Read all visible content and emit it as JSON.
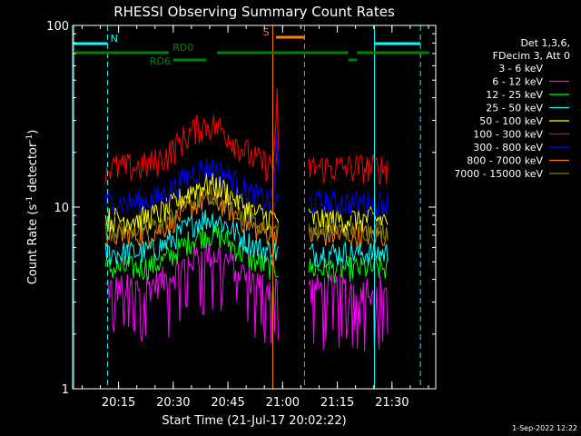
{
  "chart_data": {
    "type": "line",
    "title": "RHESSI Observing Summary Count Rates",
    "xlabel": "Start Time (21-Jul-17 20:02:22)",
    "ylabel_main": "Count Rate (s",
    "ylabel_sup1": "-1",
    "ylabel_mid": " detector",
    "ylabel_sup2": "-1",
    "ylabel_end": ")",
    "yscale": "log",
    "xlim": [
      20.04,
      21.7
    ],
    "ylim": [
      1,
      100
    ],
    "x_ticks": [
      {
        "label": "20:15",
        "value": 20.25
      },
      {
        "label": "20:30",
        "value": 20.5
      },
      {
        "label": "20:45",
        "value": 20.75
      },
      {
        "label": "21:00",
        "value": 21.0
      },
      {
        "label": "21:15",
        "value": 21.25
      },
      {
        "label": "21:30",
        "value": 21.5
      }
    ],
    "y_ticks": [
      {
        "label": "1",
        "value": 1
      },
      {
        "label": "10",
        "value": 10
      },
      {
        "label": "100",
        "value": 100
      }
    ],
    "legend_header": [
      "Det 1,3,6,",
      "FDecim 3, Att 0"
    ],
    "series": [
      {
        "name": "3 - 6 keV",
        "color": "#000000",
        "base": 9.3,
        "amp": 0.35
      },
      {
        "name": "6 - 12 keV",
        "color": "#ff00ff",
        "base": 3.6,
        "amp": 0.65
      },
      {
        "name": "12 - 25 keV",
        "color": "#00ff00",
        "base": 4.6,
        "amp": 0.55
      },
      {
        "name": "25 - 50 keV",
        "color": "#00ffff",
        "base": 5.6,
        "amp": 0.55
      },
      {
        "name": "50 - 100 keV",
        "color": "#ffff00",
        "base": 8.6,
        "amp": 0.55
      },
      {
        "name": "100 - 300 keV",
        "color": "#ff0000",
        "base": 16.5,
        "amp": 0.65
      },
      {
        "name": "300 - 800 keV",
        "color": "#0000ff",
        "base": 10.6,
        "amp": 0.55
      },
      {
        "name": "800 - 7000 keV",
        "color": "#ff7f00",
        "base": 7.0,
        "amp": 0.5
      },
      {
        "name": "7000 - 15000 keV",
        "color": "#808000",
        "base": 7.5,
        "amp": 0.45
      }
    ],
    "data_segments": [
      [
        20.19,
        20.98
      ],
      [
        21.12,
        21.48
      ]
    ],
    "flags": [
      {
        "label": "N",
        "color": "#00ffff"
      },
      {
        "label": "S",
        "color": "#ff7f00"
      },
      {
        "label": "RD0",
        "color": "#008000"
      },
      {
        "label": "RD6",
        "color": "#008000"
      }
    ],
    "timestamp": "1-Sep-2022 12:22"
  }
}
